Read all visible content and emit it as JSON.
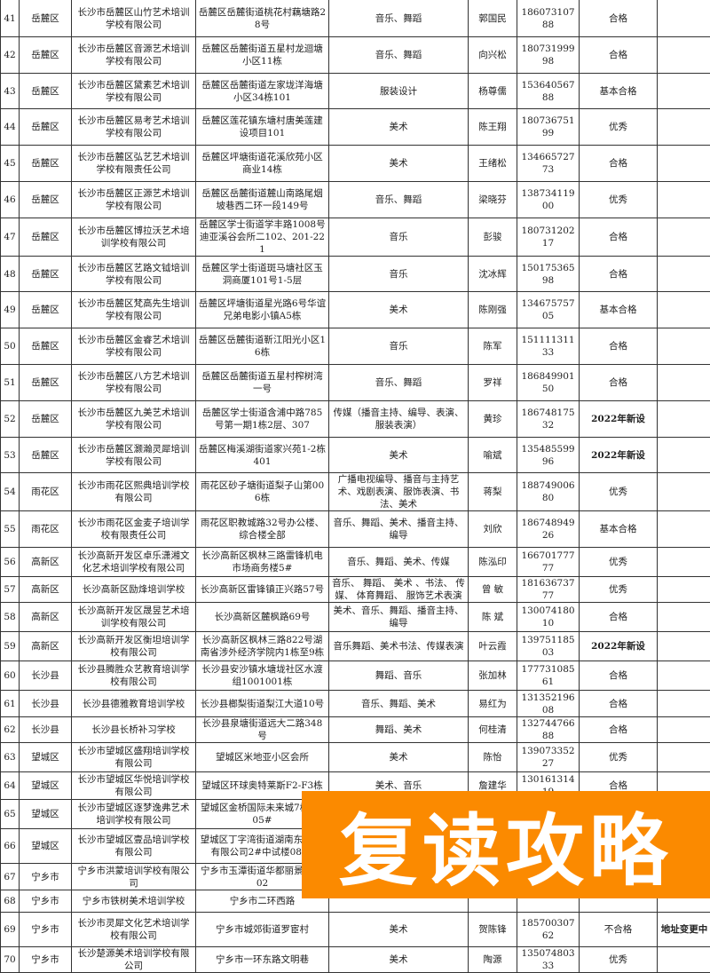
{
  "rows": [
    {
      "no": "41",
      "district": "岳麓区",
      "name": "长沙市岳麓区山竹艺术培训学校有限公司",
      "address": "岳麓区岳麓街道桃花村藕塘路28号",
      "subject": "音乐、舞蹈",
      "contact": "郭国民",
      "phone": "18607310788",
      "rating": "合格",
      "note": ""
    },
    {
      "no": "42",
      "district": "岳麓区",
      "name": "长沙市岳麓区音源艺术培训学校有限公司",
      "address": "岳麓区岳麓街道五星村龙迴塘小区11栋",
      "subject": "音乐、舞蹈",
      "contact": "向兴松",
      "phone": "18073199998",
      "rating": "合格",
      "note": ""
    },
    {
      "no": "43",
      "district": "岳麓区",
      "name": "长沙市岳麓区黛素艺术培训学校有限公司",
      "address": "岳麓区岳麓街道左家垅洋海塘小区34栋101",
      "subject": "服装设计",
      "contact": "杨尊儒",
      "phone": "15364056788",
      "rating": "基本合格",
      "note": ""
    },
    {
      "no": "44",
      "district": "岳麓区",
      "name": "长沙市岳麓区易考艺术培训学校有限公司",
      "address": "岳麓区莲花镇东塘村唐美莲建设项目101",
      "subject": "美术",
      "contact": "陈王翔",
      "phone": "18073675199",
      "rating": "优秀",
      "note": ""
    },
    {
      "no": "45",
      "district": "岳麓区",
      "name": "长沙市岳麓区弘艺艺术培训学校有限责任公司",
      "address": "岳麓区坪塘街道花溪欣苑小区商业14栋",
      "subject": "美术",
      "contact": "王绪松",
      "phone": "13466572773",
      "rating": "合格",
      "note": ""
    },
    {
      "no": "46",
      "district": "岳麓区",
      "name": "长沙市岳麓区正源艺术培训学校有限公司",
      "address": "岳麓区岳麓街道麓山南路尾烟坡巷西二环一段149号",
      "subject": "音乐、舞蹈",
      "contact": "梁晓芬",
      "phone": "13873411900",
      "rating": "优秀",
      "note": ""
    },
    {
      "no": "47",
      "district": "岳麓区",
      "name": "长沙市岳麓区博拉沃艺术培训学校有限公司",
      "address": "岳麓区学士街道学丰路1008号迪亚溪谷会所二102、201-221",
      "subject": "音乐",
      "contact": "彭骏",
      "phone": "18073120217",
      "rating": "合格",
      "note": ""
    },
    {
      "no": "48",
      "district": "岳麓区",
      "name": "长沙市岳麓区艺路文钺培训学校有限公司",
      "address": "岳麓区学士街道斑马塘社区玉洞商厦101号1-5层",
      "subject": "音乐",
      "contact": "沈冰辉",
      "phone": "15017536598",
      "rating": "合格",
      "note": ""
    },
    {
      "no": "49",
      "district": "岳麓区",
      "name": "长沙市岳麓区梵高先生培训学校有限公司",
      "address": "岳麓区坪塘街道星光路6号华谊兄弟电影小镇A5栋",
      "subject": "美术",
      "contact": "陈刚强",
      "phone": "13467575705",
      "rating": "基本合格",
      "note": ""
    },
    {
      "no": "50",
      "district": "岳麓区",
      "name": "长沙市岳麓区金睿艺术培训学校有限公司",
      "address": "岳麓区岳麓街道靳江阳光小区16栋",
      "subject": "音乐",
      "contact": "陈军",
      "phone": "15111131133",
      "rating": "合格",
      "note": ""
    },
    {
      "no": "51",
      "district": "岳麓区",
      "name": "长沙市岳麓区八方艺术培训学校有限公司",
      "address": "岳麓区岳麓街道五星村榨树湾一号",
      "subject": "音乐、舞蹈",
      "contact": "罗祥",
      "phone": "18684990150",
      "rating": "合格",
      "note": ""
    },
    {
      "no": "52",
      "district": "岳麓区",
      "name": "长沙市岳麓区九美艺术培训学校有限公司",
      "address": "岳麓区学士街道含浦中路785号第一期1栋2层、307",
      "subject": "传媒（播音主持、编导、表演、服装表演）",
      "contact": "黄珍",
      "phone": "18674817532",
      "rating": "2022年新设",
      "note": ""
    },
    {
      "no": "53",
      "district": "岳麓区",
      "name": "长沙市岳麓区灏瀚灵犀培训学校有限公司",
      "address": "岳麓区梅溪湖街道家兴苑1-2栋401",
      "subject": "美术",
      "contact": "喻斌",
      "phone": "13548559996",
      "rating": "2022年新设",
      "note": ""
    },
    {
      "no": "54",
      "district": "雨花区",
      "name": "长沙市雨花区熙典培训学校有限公司",
      "address": "雨花区砂子塘街道梨子山第006栋",
      "subject": "广播电视编导、播音与主持艺术、戏剧表演、服饰表演、书法、美术",
      "contact": "蒋梨",
      "phone": "18874900680",
      "rating": "优秀",
      "note": ""
    },
    {
      "no": "55",
      "district": "雨花区",
      "name": "长沙市雨花区金麦子培训学校有限责任公司",
      "address": "雨花区职教城路32号办公楼、综合楼全部",
      "subject": "音乐、舞蹈、美术、播音主持、编导",
      "contact": "刘欣",
      "phone": "18674894926",
      "rating": "基本合格",
      "note": ""
    },
    {
      "no": "56",
      "district": "高新区",
      "name": "长沙高新开发区卓乐潇湘文化艺术培训学校有限公司",
      "address": "长沙高新区枫林三路雷锋机电市场商务楼5#",
      "subject": "音乐、舞蹈、美术、传媒",
      "contact": "陈泓印",
      "phone": "16670177777",
      "rating": "优秀",
      "note": ""
    },
    {
      "no": "57",
      "district": "高新区",
      "name": "长沙高新区励烽培训学校",
      "address": "长沙高新区雷锋镇正兴路57号",
      "subject": "音乐、 舞蹈、 美术 、书法、 传媒、 体育舞蹈、 服饰艺术表演",
      "contact": "曾 敏",
      "phone": "18163673777",
      "rating": "优秀",
      "note": ""
    },
    {
      "no": "58",
      "district": "高新区",
      "name": "长沙高新开发区晟昱艺术培训学校有限公司",
      "address": "长沙高新区麓枫路69号",
      "subject": "美术、音乐、舞蹈、播音主持、编导",
      "contact": "陈 斌",
      "phone": "13007418010",
      "rating": "合格",
      "note": ""
    },
    {
      "no": "59",
      "district": "高新区",
      "name": "长沙高新开发区衡坦培训学校有限公司",
      "address": "长沙高新区枫林三路822号湖南省涉外经济学院内1栋至9栋",
      "subject": "音乐舞蹈、美术书法、传媒表演",
      "contact": "叶云霞",
      "phone": "13975118503",
      "rating": "2022年新设",
      "note": ""
    },
    {
      "no": "60",
      "district": "长沙县",
      "name": "长沙县腾胜众艺教育培训学校有限公司",
      "address": "长沙县安沙镇水塘垅社区水渡组1001001栋",
      "subject": "舞蹈、音乐",
      "contact": "张加林",
      "phone": "17773108561",
      "rating": "合格",
      "note": ""
    },
    {
      "no": "61",
      "district": "长沙县",
      "name": "长沙县德雅教育培训学校",
      "address": "长沙县榔梨街道梨江大道10号",
      "subject": "音乐、舞蹈、美术",
      "contact": "易红为",
      "phone": "13135219608",
      "rating": "合格",
      "note": ""
    },
    {
      "no": "62",
      "district": "长沙县",
      "name": "长沙县长桥补习学校",
      "address": "长沙县泉塘街道远大二路348号",
      "subject": "舞蹈、美术",
      "contact": "何桂清",
      "phone": "13274476688",
      "rating": "合格",
      "note": ""
    },
    {
      "no": "63",
      "district": "望城区",
      "name": "长沙市望城区盛翔培训学校有限公司",
      "address": "望城区米地亚小区会所",
      "subject": "美术",
      "contact": "陈怡",
      "phone": "13907335227",
      "rating": "优秀",
      "note": ""
    },
    {
      "no": "64",
      "district": "望城区",
      "name": "长沙市望城区华悦培训学校有限公司",
      "address": "望城区环球奥特莱斯F2-F3栋",
      "subject": "美术、音乐",
      "contact": "詹建华",
      "phone": "13016131419",
      "rating": "合格",
      "note": ""
    },
    {
      "no": "65",
      "district": "望城区",
      "name": "长沙市望城区逐梦逸弗艺术培训学校有限公司",
      "address": "望城区金桥国际未来城7栋3 305#",
      "subject": "",
      "contact": "",
      "phone": "",
      "rating": "",
      "note": ""
    },
    {
      "no": "66",
      "district": "望城区",
      "name": "长沙市望城区壹品培训学校有限公司",
      "address": "望城区丁字湾街道湖南东野 程有限公司2#中试楼0818",
      "subject": "",
      "contact": "",
      "phone": "",
      "rating": "",
      "note": ""
    },
    {
      "no": "67",
      "district": "宁乡市",
      "name": "宁乡市洪蒙培训学校有限公司",
      "address": "宁乡市玉潭街道华都丽景26 202",
      "subject": "",
      "contact": "",
      "phone": "",
      "rating": "",
      "note": ""
    },
    {
      "no": "68",
      "district": "宁乡市",
      "name": "宁乡市铁树美术培训学校",
      "address": "宁乡市二环西路",
      "subject": "",
      "contact": "",
      "phone": "",
      "rating": "",
      "note": ""
    },
    {
      "no": "69",
      "district": "宁乡市",
      "name": "长沙市灵犀文化艺术培训学校有限公司",
      "address": "宁乡市城郊街道罗宦村",
      "subject": "美术",
      "contact": "贺陈锋",
      "phone": "18570030762",
      "rating": "不合格",
      "note": "地址变更中"
    },
    {
      "no": "70",
      "district": "宁乡市",
      "name": "长沙楚源美术培训学校有限公司",
      "address": "宁乡市一环东路文明巷",
      "subject": "美术",
      "contact": "陶源",
      "phone": "13507480333",
      "rating": "优秀",
      "note": ""
    }
  ],
  "watermark": {
    "text": "复读攻略",
    "color": "#fb8a00"
  }
}
